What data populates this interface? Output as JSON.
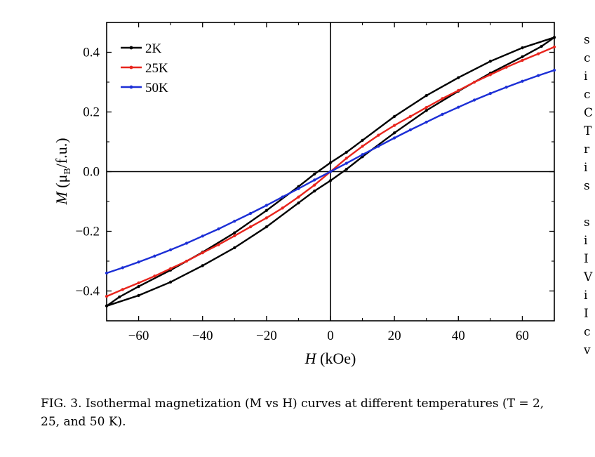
{
  "chart_data": {
    "type": "line",
    "xlabel_var": "H",
    "xlabel_unit": " (kOe)",
    "ylabel_var": "M",
    "ylabel_unit_pre": " (μ",
    "ylabel_unit_sub": "B",
    "ylabel_unit_post": "/f.u.)",
    "xlim": [
      -70,
      70
    ],
    "ylim": [
      -0.5,
      0.5
    ],
    "xticks": [
      "−60",
      "−40",
      "−20",
      "0",
      "20",
      "40",
      "60"
    ],
    "xtick_values": [
      -60,
      -40,
      -20,
      0,
      20,
      40,
      60
    ],
    "yticks": [
      "−0.4",
      "−0.2",
      "0.0",
      "0.2",
      "0.4"
    ],
    "ytick_values": [
      -0.4,
      -0.2,
      0.0,
      0.2,
      0.4
    ],
    "legend_position": "top-left",
    "series": [
      {
        "name": "2K",
        "color": "#000000",
        "branch_down": {
          "x": [
            70,
            60,
            50,
            40,
            30,
            20,
            10,
            5,
            0,
            -5,
            -10,
            -20,
            -30,
            -40,
            -50,
            -60,
            -66,
            -70
          ],
          "y": [
            0.45,
            0.415,
            0.37,
            0.315,
            0.255,
            0.185,
            0.105,
            0.065,
            0.03,
            -0.008,
            -0.05,
            -0.13,
            -0.205,
            -0.27,
            -0.33,
            -0.385,
            -0.42,
            -0.45
          ]
        },
        "branch_up": {
          "x": [
            -70,
            -60,
            -50,
            -40,
            -30,
            -20,
            -10,
            -5,
            0,
            5,
            10,
            20,
            30,
            40,
            50,
            60,
            66,
            70
          ],
          "y": [
            -0.45,
            -0.415,
            -0.37,
            -0.315,
            -0.255,
            -0.185,
            -0.105,
            -0.065,
            -0.03,
            0.008,
            0.05,
            0.13,
            0.205,
            0.27,
            0.33,
            0.385,
            0.42,
            0.45
          ]
        }
      },
      {
        "name": "25K",
        "color": "#e8251d",
        "x": [
          -70,
          -65,
          -60,
          -55,
          -50,
          -45,
          -40,
          -35,
          -30,
          -25,
          -20,
          -15,
          -10,
          -5,
          0,
          5,
          10,
          15,
          20,
          25,
          30,
          35,
          40,
          45,
          50,
          55,
          60,
          65,
          70
        ],
        "y": [
          -0.418,
          -0.395,
          -0.373,
          -0.35,
          -0.325,
          -0.3,
          -0.272,
          -0.245,
          -0.215,
          -0.185,
          -0.155,
          -0.122,
          -0.085,
          -0.045,
          0.0,
          0.045,
          0.085,
          0.122,
          0.155,
          0.185,
          0.215,
          0.245,
          0.272,
          0.3,
          0.325,
          0.35,
          0.373,
          0.395,
          0.418
        ]
      },
      {
        "name": "50K",
        "color": "#1c2fd6",
        "x": [
          -70,
          -65,
          -60,
          -55,
          -50,
          -45,
          -40,
          -35,
          -30,
          -25,
          -20,
          -15,
          -10,
          -5,
          0,
          5,
          10,
          15,
          20,
          25,
          30,
          35,
          40,
          45,
          50,
          55,
          60,
          65,
          70
        ],
        "y": [
          -0.34,
          -0.322,
          -0.303,
          -0.283,
          -0.262,
          -0.24,
          -0.216,
          -0.192,
          -0.166,
          -0.14,
          -0.113,
          -0.085,
          -0.057,
          -0.028,
          0.0,
          0.028,
          0.057,
          0.085,
          0.113,
          0.14,
          0.166,
          0.192,
          0.216,
          0.24,
          0.262,
          0.283,
          0.303,
          0.322,
          0.34
        ]
      }
    ]
  },
  "caption": "FIG. 3. Isothermal magnetization (M vs H) curves at different temperatures (T = 2, 25, and 50 K).",
  "side_column_letters": [
    "s",
    "c",
    "i",
    "c",
    "C",
    "T",
    "r",
    "i",
    "s",
    "",
    "s",
    "i",
    "I",
    "V",
    "i",
    "I",
    "c",
    "v"
  ]
}
